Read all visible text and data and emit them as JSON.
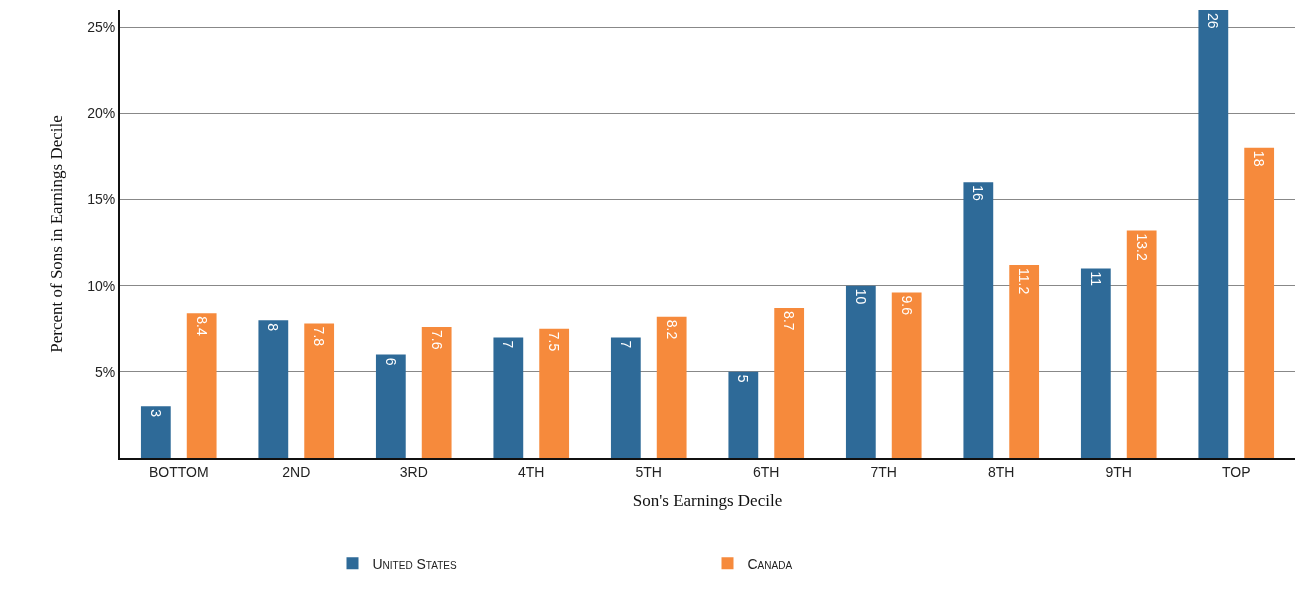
{
  "chart_data": {
    "type": "bar",
    "xlabel": "Son's Earnings Decile",
    "ylabel": "Percent of Sons in Earnings Decile",
    "categories": [
      "BOTTOM",
      "2ND",
      "3RD",
      "4TH",
      "5TH",
      "6TH",
      "7TH",
      "8TH",
      "9TH",
      "TOP"
    ],
    "series": [
      {
        "name": "United States",
        "color": "#2e6a98",
        "values": [
          3,
          8,
          6,
          7,
          7,
          5,
          10,
          16,
          11,
          26
        ]
      },
      {
        "name": "Canada",
        "color": "#f68a3c",
        "values": [
          8.4,
          7.8,
          7.6,
          7.5,
          8.2,
          8.7,
          9.6,
          11.2,
          13.2,
          18
        ]
      }
    ],
    "ylim": [
      0,
      26
    ],
    "yticks": [
      {
        "value": 5,
        "label": "5%"
      },
      {
        "value": 10,
        "label": "10%"
      },
      {
        "value": 15,
        "label": "15%"
      },
      {
        "value": 20,
        "label": "20%"
      },
      {
        "value": 25,
        "label": "25%"
      }
    ],
    "grid": "y",
    "legend": "bottom",
    "data_labels": true
  }
}
